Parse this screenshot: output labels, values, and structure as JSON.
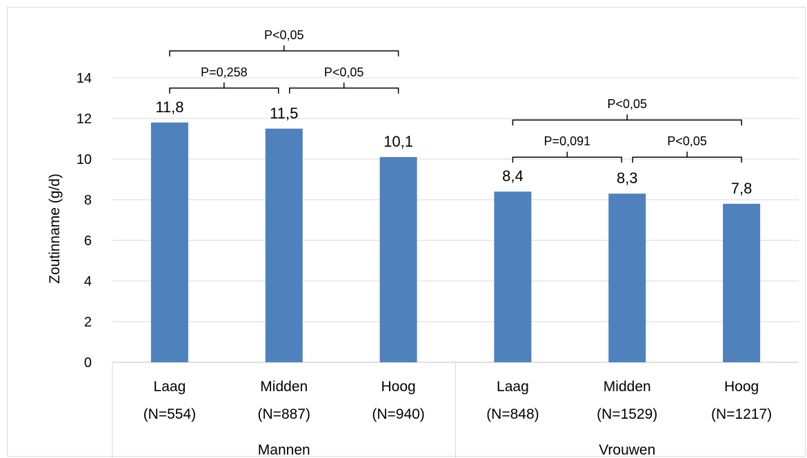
{
  "chart_data": {
    "type": "bar",
    "title": "",
    "ylabel": "Zoutinname (g/d)",
    "xlabel": "",
    "ylim": [
      0,
      14
    ],
    "yticks": [
      "0",
      "2",
      "4",
      "6",
      "8",
      "10",
      "12",
      "14"
    ],
    "grid": true,
    "bar_color": "#4f81bd",
    "groups": [
      {
        "name": "Mannen",
        "categories": [
          {
            "label": "Laag",
            "n": "(N=554)"
          },
          {
            "label": "Midden",
            "n": "(N=887)"
          },
          {
            "label": "Hoog",
            "n": "(N=940)"
          }
        ],
        "values": [
          11.8,
          11.5,
          10.1
        ],
        "value_labels": [
          "11,8",
          "11,5",
          "10,1"
        ],
        "comparisons": [
          {
            "from": 0,
            "to": 1,
            "label": "P=0,258"
          },
          {
            "from": 1,
            "to": 2,
            "label": "P<0,05"
          },
          {
            "from": 0,
            "to": 2,
            "label": "P<0,05"
          }
        ]
      },
      {
        "name": "Vrouwen",
        "categories": [
          {
            "label": "Laag",
            "n": "(N=848)"
          },
          {
            "label": "Midden",
            "n": "(N=1529)"
          },
          {
            "label": "Hoog",
            "n": "(N=1217)"
          }
        ],
        "values": [
          8.4,
          8.3,
          7.8
        ],
        "value_labels": [
          "8,4",
          "8,3",
          "7,8"
        ],
        "comparisons": [
          {
            "from": 0,
            "to": 1,
            "label": "P=0,091"
          },
          {
            "from": 1,
            "to": 2,
            "label": "P<0,05"
          },
          {
            "from": 0,
            "to": 2,
            "label": "P<0,05"
          }
        ]
      }
    ]
  }
}
